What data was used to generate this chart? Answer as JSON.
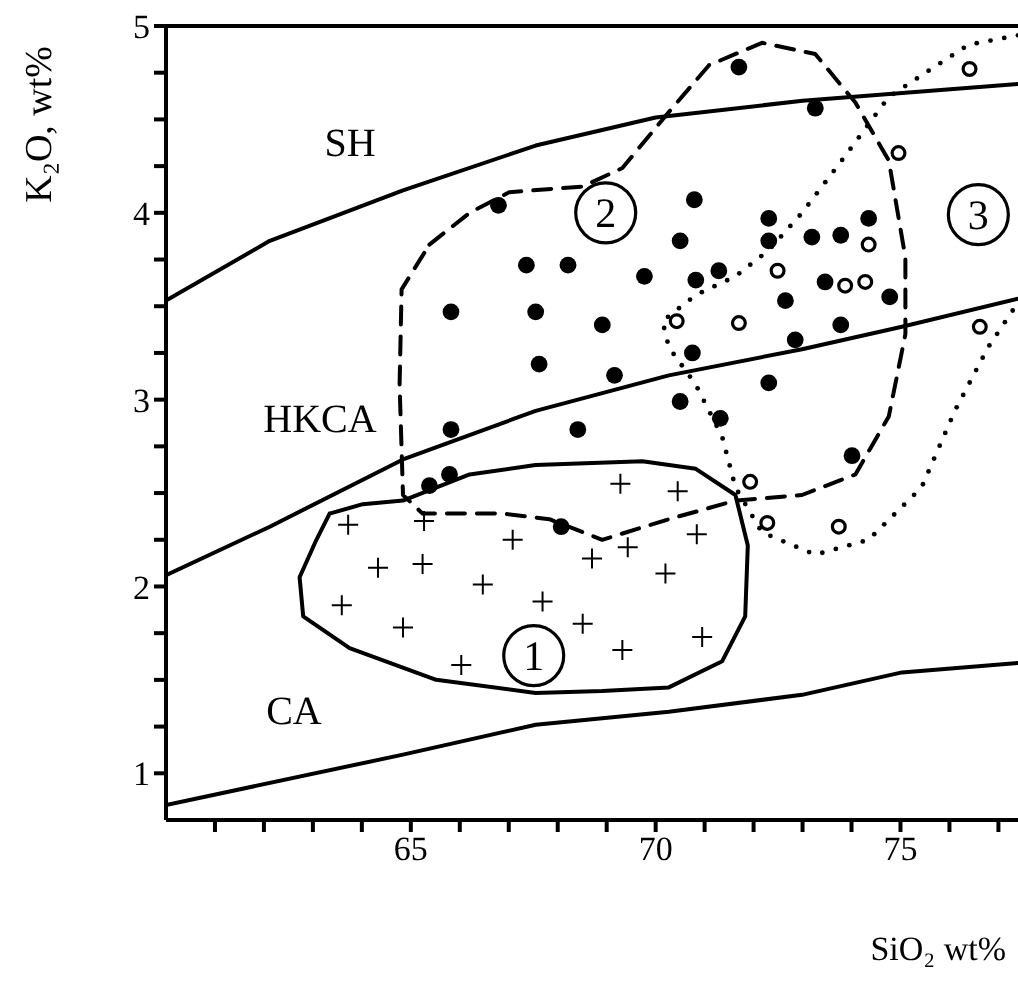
{
  "chart_data": {
    "type": "scatter",
    "xlabel": "SiO₂ wt%",
    "ylabel": "K₂O, wt%",
    "xlim": [
      60,
      77.4
    ],
    "ylim": [
      0.75,
      5
    ],
    "xticks": [
      {
        "value": 61,
        "label": null
      },
      {
        "value": 62,
        "label": null
      },
      {
        "value": 63,
        "label": null
      },
      {
        "value": 64,
        "label": null
      },
      65,
      {
        "value": 66,
        "label": null
      },
      {
        "value": 67,
        "label": null
      },
      {
        "value": 68,
        "label": null
      },
      {
        "value": 69,
        "label": null
      },
      70,
      {
        "value": 71,
        "label": null
      },
      {
        "value": 72,
        "label": null
      },
      {
        "value": 73,
        "label": null
      },
      {
        "value": 74,
        "label": null
      },
      75,
      {
        "value": 76,
        "label": null
      },
      {
        "value": 77,
        "label": null
      }
    ],
    "yticks": [
      1,
      {
        "value": 1.25,
        "label": null
      },
      {
        "value": 1.5,
        "label": null
      },
      {
        "value": 1.75,
        "label": null
      },
      2,
      {
        "value": 2.25,
        "label": null
      },
      {
        "value": 2.5,
        "label": null
      },
      {
        "value": 2.75,
        "label": null
      },
      3,
      {
        "value": 3.25,
        "label": null
      },
      {
        "value": 3.5,
        "label": null
      },
      {
        "value": 3.75,
        "label": null
      },
      4,
      {
        "value": 4.25,
        "label": null
      },
      {
        "value": 4.5,
        "label": null
      },
      {
        "value": 4.75,
        "label": null
      },
      5
    ],
    "grid": false,
    "series": [
      {
        "type": "line",
        "color": "#000000",
        "line_style": "solid",
        "marker": "none",
        "x": [
          60,
          62.12,
          64.84,
          67.55,
          70,
          73,
          77.4
        ],
        "values": [
          3.53,
          3.85,
          4.12,
          4.36,
          4.51,
          4.6,
          4.69
        ]
      },
      {
        "type": "line",
        "color": "#000000",
        "line_style": "solid",
        "marker": "none",
        "x": [
          60,
          62.12,
          64.84,
          67.55,
          70.27,
          72.99,
          75.03,
          77.4
        ],
        "values": [
          2.06,
          2.32,
          2.68,
          2.94,
          3.13,
          3.27,
          3.39,
          3.54
        ]
      },
      {
        "type": "line",
        "color": "#000000",
        "line_style": "solid",
        "marker": "none",
        "x": [
          60,
          64.84,
          67.55,
          70.27,
          72.99,
          75.03,
          77.4
        ],
        "values": [
          0.83,
          1.1,
          1.26,
          1.33,
          1.42,
          1.54,
          1.59
        ]
      },
      {
        "color": "#000000",
        "marker": "circle",
        "x": [
          71.7,
          73.26,
          66.79,
          70.79,
          72.31,
          74.35,
          70.5,
          72.31,
          73.19,
          73.78,
          67.36,
          68.21,
          69.77,
          71.29,
          70.82,
          73.46,
          72.65,
          74.78,
          65.82,
          67.55,
          68.91,
          73.78,
          72.85,
          70.75,
          67.62,
          69.16,
          72.31,
          70.5,
          71.32,
          65.82,
          68.41,
          74.01,
          65.79,
          65.38,
          68.07
        ],
        "values": [
          4.78,
          4.56,
          4.04,
          4.07,
          3.97,
          3.97,
          3.85,
          3.85,
          3.87,
          3.88,
          3.72,
          3.72,
          3.66,
          3.69,
          3.64,
          3.63,
          3.53,
          3.55,
          3.47,
          3.47,
          3.4,
          3.4,
          3.32,
          3.25,
          3.19,
          3.13,
          3.09,
          2.99,
          2.9,
          2.84,
          2.84,
          2.7,
          2.6,
          2.54,
          2.32
        ]
      },
      {
        "color": "#000000",
        "marker": "circle_open",
        "x": [
          76.41,
          74.96,
          74.35,
          72.49,
          73.87,
          74.28,
          70.43,
          71.7,
          76.62,
          71.93,
          72.28,
          73.74
        ],
        "values": [
          4.77,
          4.32,
          3.83,
          3.69,
          3.61,
          3.63,
          3.42,
          3.41,
          3.39,
          2.56,
          2.34,
          2.32
        ]
      },
      {
        "color": "#000000",
        "marker": "cross",
        "x": [
          63.72,
          65.27,
          67.08,
          69.28,
          70.45,
          70.84,
          64.33,
          65.24,
          66.47,
          68.7,
          69.43,
          70.2,
          63.59,
          67.69,
          64.84,
          68.51,
          66.03,
          69.32,
          70.95
        ],
        "values": [
          2.33,
          2.35,
          2.25,
          2.55,
          2.51,
          2.28,
          2.1,
          2.12,
          2.01,
          2.15,
          2.21,
          2.07,
          1.9,
          1.92,
          1.78,
          1.8,
          1.58,
          1.66,
          1.73
        ]
      }
    ],
    "annotations": [
      "SH",
      "HKCA",
      "CA",
      {
        "text": "1",
        "x": 67.51,
        "y": 1.63
      },
      {
        "text": "2",
        "x": 68.98,
        "y": 4.0
      },
      {
        "text": "3",
        "x": 76.59,
        "y": 3.99
      }
    ]
  }
}
